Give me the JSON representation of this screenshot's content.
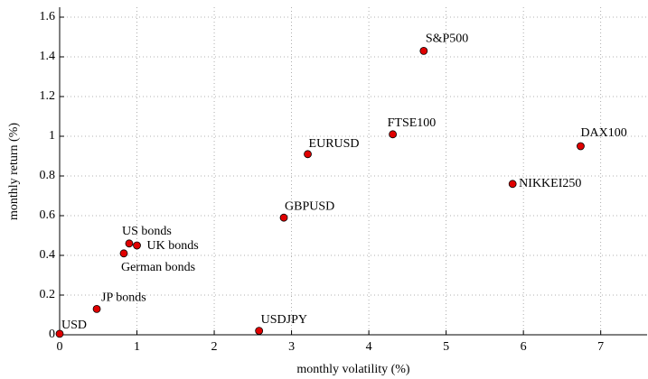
{
  "chart_data": {
    "type": "scatter",
    "xlabel": "monthly volatility (%)",
    "ylabel": "monthly return (%)",
    "labels": [
      "USD",
      "JP bonds",
      "USDJPY",
      "German bonds",
      "US bonds",
      "UK bonds",
      "GBPUSD",
      "EURUSD",
      "FTSE100",
      "S&P500",
      "NIKKEI250",
      "DAX100"
    ],
    "x": [
      0,
      0.48,
      2.58,
      0.83,
      0.9,
      1.0,
      2.9,
      3.21,
      4.31,
      4.71,
      5.86,
      6.74
    ],
    "values": [
      0.005,
      0.13,
      0.02,
      0.41,
      0.46,
      0.45,
      0.59,
      0.91,
      1.01,
      1.43,
      0.76,
      0.95
    ],
    "color": "#e00000",
    "xlim": [
      0,
      7.6
    ],
    "ylim": [
      0,
      1.65
    ],
    "xticks": [
      0,
      1,
      2,
      3,
      4,
      5,
      6,
      7
    ],
    "yticks": [
      0,
      0.2,
      0.4,
      0.6,
      0.8,
      1,
      1.2,
      1.4,
      1.6
    ],
    "grid": true
  }
}
